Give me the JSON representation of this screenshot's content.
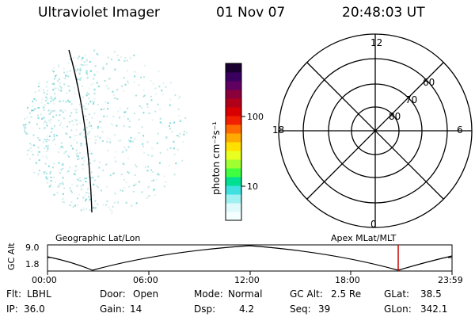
{
  "header": {
    "instrument": "Ultraviolet Imager",
    "date": "01 Nov 07",
    "time": "20:48:03 UT"
  },
  "colorbar": {
    "unit_label": "photon cm⁻²s⁻¹",
    "ticks": [
      "100",
      "10"
    ],
    "colors": [
      "#1a0030",
      "#3a0060",
      "#600060",
      "#8a003a",
      "#b0001a",
      "#d80000",
      "#f02000",
      "#ff6a00",
      "#ffaa00",
      "#ffe000",
      "#e8ff20",
      "#a0ff30",
      "#40ff40",
      "#00e090",
      "#40e0e0",
      "#9ff0f0",
      "#dffafa",
      "#f4ffff"
    ]
  },
  "polar_plot": {
    "mlt_labels": {
      "top": "12",
      "left": "18",
      "right": "6",
      "bottom": "0"
    },
    "lat_labels": [
      "60",
      "70",
      "80"
    ]
  },
  "timeline": {
    "left_label": "Geographic Lat/Lon",
    "right_label": "Apex MLat/MLT",
    "axis_title": "GC Alt",
    "y_ticks": [
      "9.0",
      "1.8"
    ],
    "x_ticks": [
      "00:00",
      "06:00",
      "12:00",
      "18:00",
      "23:59"
    ],
    "marker_color": "#cc0000"
  },
  "status": {
    "flt_label": "Flt:",
    "flt_value": "LBHL",
    "ip_label": "IP:",
    "ip_value": "36.0",
    "door_label": "Door:",
    "door_value": "Open",
    "gain_label": "Gain:",
    "gain_value": "14",
    "mode_label": "Mode:",
    "mode_value": "Normal",
    "dsp_label": "Dsp:",
    "dsp_value": "4.2",
    "gcalt_label": "GC Alt:",
    "gcalt_value": "2.5 Re",
    "seq_label": "Seq:",
    "seq_value": "39",
    "glat_label": "GLat:",
    "glat_value": "38.5",
    "glon_label": "GLon:",
    "glon_value": "342.1"
  }
}
